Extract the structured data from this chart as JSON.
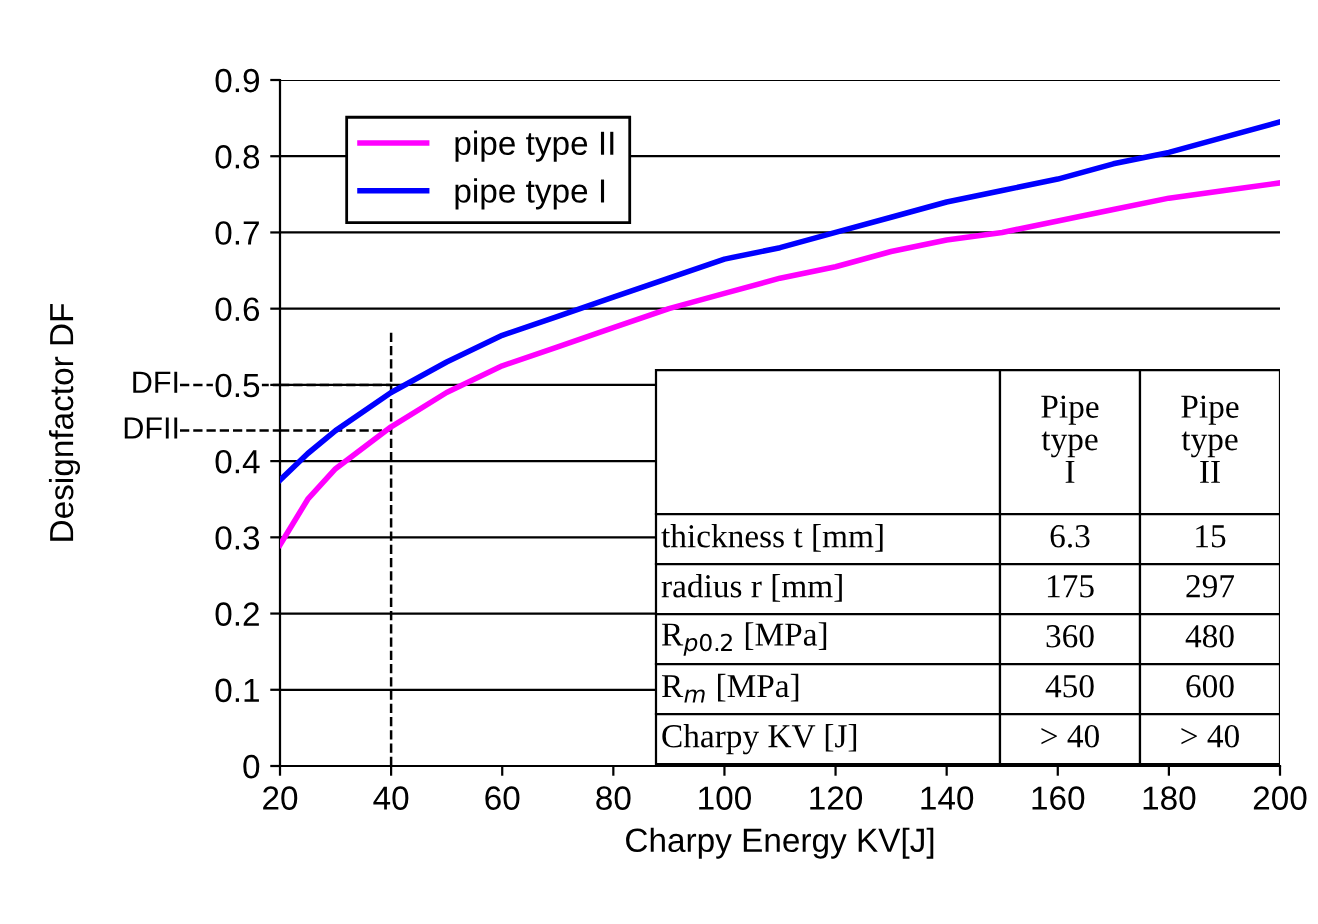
{
  "chart_data": {
    "type": "line",
    "xlabel": "Charpy Energy KV[J]",
    "ylabel": "Designfactor DF",
    "x": [
      20,
      25,
      30,
      40,
      50,
      60,
      70,
      80,
      90,
      100,
      110,
      120,
      130,
      140,
      150,
      160,
      170,
      180,
      190,
      200
    ],
    "series": [
      {
        "name": "pipe type II",
        "color": "#ff00ff",
        "values": [
          0.29,
          0.35,
          0.39,
          0.445,
          0.49,
          0.525,
          0.55,
          0.575,
          0.6,
          0.62,
          0.64,
          0.655,
          0.675,
          0.69,
          0.7,
          0.715,
          0.73,
          0.745,
          0.755,
          0.765
        ]
      },
      {
        "name": "pipe type I",
        "color": "#0000ff",
        "values": [
          0.375,
          0.41,
          0.44,
          0.49,
          0.53,
          0.565,
          0.59,
          0.615,
          0.64,
          0.665,
          0.68,
          0.7,
          0.72,
          0.74,
          0.755,
          0.77,
          0.79,
          0.805,
          0.825,
          0.845
        ]
      }
    ],
    "xlim": [
      20,
      200
    ],
    "xticks": [
      20,
      40,
      60,
      80,
      100,
      120,
      140,
      160,
      180,
      200
    ],
    "ylim": [
      0,
      0.9
    ],
    "yticks": [
      0,
      0.1,
      0.2,
      0.3,
      0.4,
      0.5,
      0.6,
      0.7,
      0.8,
      0.9
    ],
    "ref_lines": [
      {
        "axis": "x",
        "value": 40,
        "color": "#000000",
        "line_style": "dashed"
      },
      {
        "axis": "y",
        "value": 0.5,
        "label": "DFI",
        "color": "#000000",
        "line_style": "dashed"
      },
      {
        "axis": "y",
        "value": 0.44,
        "label": "DFII",
        "color": "#000000",
        "line_style": "dashed"
      }
    ],
    "annotations": [
      "Pipe type I",
      "Pipe type II",
      "thickness t [mm]",
      "6.3",
      "15",
      "radius r [mm]",
      "175",
      "297",
      "R$_{p0.2}$ [MPa]",
      "360",
      "480",
      "R$_{m}$ [MPa]",
      "450",
      "600",
      "Charpy KV [J]",
      "> 40",
      "> 40"
    ],
    "grid": "y",
    "legend": "top left",
    "marker": "none",
    "line_style": "solid"
  }
}
